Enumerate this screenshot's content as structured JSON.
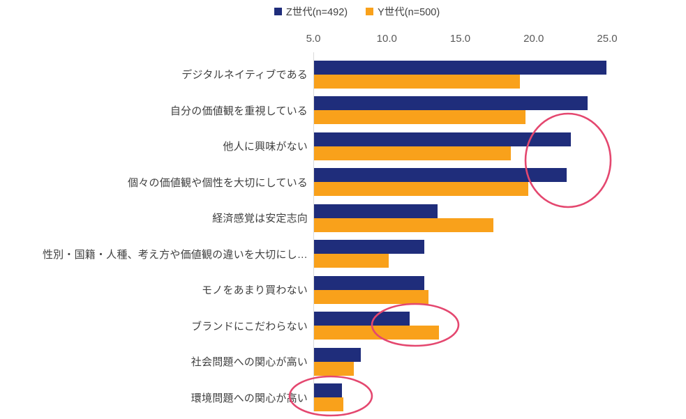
{
  "legend": [
    {
      "label": "Z世代(n=492)",
      "color": "#1F2D7B"
    },
    {
      "label": "Y世代(n=500)",
      "color": "#F9A11B"
    }
  ],
  "chart_data": {
    "type": "bar",
    "orientation": "horizontal",
    "title": "",
    "xlabel": "",
    "ylabel": "",
    "xlim": [
      5.0,
      25.0
    ],
    "xticks": [
      5.0,
      10.0,
      15.0,
      20.0,
      25.0
    ],
    "grid": false,
    "legend_position": "top",
    "categories": [
      "デジタルネイティブである",
      "自分の価値観を重視している",
      "他人に興味がない",
      "個々の価値観や個性を大切にしている",
      "経済感覚は安定志向",
      "性別・国籍・人種、考え方や価値観の違いを大切にし…",
      "モノをあまり買わない",
      "ブランドにこだわらない",
      "社会問題への関心が高い",
      "環境問題への関心が高い"
    ],
    "series": [
      {
        "name": "Z世代(n=492)",
        "color": "#1F2D7B",
        "values": [
          24.9,
          23.6,
          22.5,
          22.2,
          13.4,
          12.5,
          12.5,
          11.5,
          8.2,
          6.9
        ]
      },
      {
        "name": "Y世代(n=500)",
        "color": "#F9A11B",
        "values": [
          19.0,
          19.4,
          18.4,
          19.6,
          17.2,
          10.1,
          12.8,
          13.5,
          7.7,
          7.0
        ]
      }
    ],
    "annotations": [
      {
        "shape": "ellipse",
        "color": "#E4476F",
        "cx": 814,
        "cy": 230,
        "rx": 61,
        "ry": 67
      },
      {
        "shape": "ellipse",
        "color": "#E4476F",
        "cx": 595,
        "cy": 466,
        "rx": 62,
        "ry": 30
      },
      {
        "shape": "ellipse",
        "color": "#E4476F",
        "cx": 474,
        "cy": 568,
        "rx": 59,
        "ry": 28
      }
    ]
  },
  "colors": {
    "series_z": "#1F2D7B",
    "series_y": "#F9A11B",
    "highlight": "#E4476F",
    "axis_line": "#D9D9D9",
    "tick_text": "#595959",
    "label_text": "#404040"
  }
}
